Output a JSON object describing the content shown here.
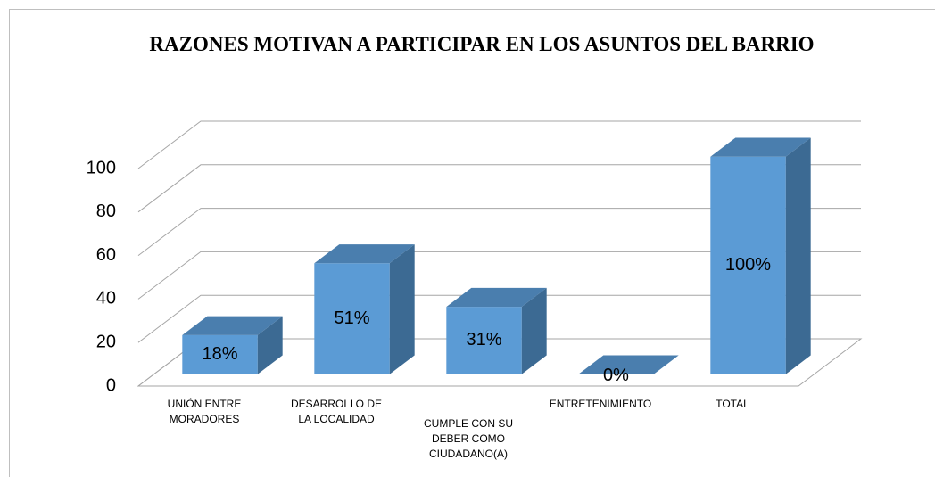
{
  "chart_data": {
    "type": "bar3d",
    "title": "RAZONES MOTIVAN A PARTICIPAR EN LOS ASUNTOS DEL BARRIO",
    "categories": [
      "UNIÓN ENTRE MORADORES",
      "DESARROLLO DE LA LOCALIDAD",
      "CUMPLE CON SU DEBER COMO CIUDADANO(A)",
      "ENTRETENIMIENTO",
      "TOTAL"
    ],
    "values": [
      18,
      51,
      31,
      0,
      100
    ],
    "value_labels": [
      "18%",
      "51%",
      "31%",
      "0%",
      "100%"
    ],
    "color": "#5b9bd5",
    "ylim": [
      0,
      100
    ],
    "yticks": [
      0,
      20,
      40,
      60,
      80,
      100
    ],
    "grid": true
  }
}
